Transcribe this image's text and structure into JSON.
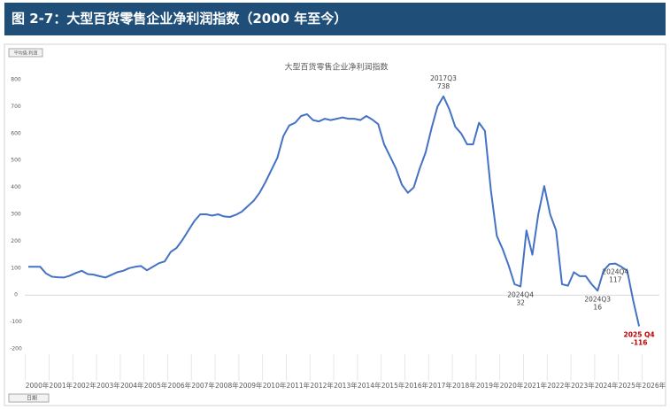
{
  "header": {
    "title": "图 2-7：大型百货零售企业净利润指数（2000 年至今）"
  },
  "chart_data": {
    "type": "line",
    "title": "大型百货零售企业净利润指数",
    "filter_button": "平均值:利润",
    "bottom_control": "日期",
    "x_group_labels": [
      "2000年",
      "2001年",
      "2002年",
      "2003年",
      "2004年",
      "2005年",
      "2006年",
      "2007年",
      "2008年",
      "2009年",
      "2010年",
      "2011年",
      "2012年",
      "2013年",
      "2014年",
      "2015年",
      "2016年",
      "2017年",
      "2018年",
      "2019年",
      "2020年",
      "2021年",
      "2022年",
      "2023年",
      "2024年",
      "2025年",
      "2026年"
    ],
    "values": [
      105,
      105,
      105,
      80,
      68,
      66,
      65,
      72,
      82,
      90,
      78,
      76,
      70,
      65,
      75,
      85,
      90,
      100,
      105,
      108,
      92,
      105,
      118,
      125,
      160,
      175,
      205,
      240,
      275,
      300,
      300,
      295,
      300,
      292,
      290,
      298,
      310,
      330,
      350,
      380,
      420,
      465,
      510,
      590,
      630,
      640,
      665,
      672,
      650,
      645,
      655,
      650,
      655,
      660,
      655,
      655,
      650,
      665,
      652,
      635,
      560,
      515,
      470,
      410,
      380,
      400,
      470,
      530,
      620,
      700,
      738,
      690,
      625,
      600,
      560,
      560,
      640,
      610,
      390,
      220,
      170,
      110,
      40,
      32,
      240,
      150,
      300,
      405,
      300,
      240,
      40,
      35,
      85,
      70,
      70,
      40,
      16,
      90,
      115,
      117,
      105,
      90,
      -20,
      -116
    ],
    "point_labels": [
      null,
      null,
      null,
      null,
      null,
      null,
      null,
      null,
      null,
      null,
      null,
      null,
      null,
      null,
      null,
      null,
      null,
      null,
      null,
      null,
      null,
      null,
      null,
      null,
      null,
      null,
      null,
      null,
      null,
      null,
      null,
      null,
      null,
      null,
      null,
      null,
      null,
      null,
      null,
      null,
      null,
      null,
      null,
      null,
      null,
      null,
      null,
      null,
      null,
      null,
      null,
      null,
      null,
      null,
      null,
      null,
      null,
      null,
      null,
      null,
      null,
      null,
      null,
      null,
      null,
      null,
      null,
      null,
      null,
      null,
      "2017Q3",
      null,
      null,
      null,
      null,
      null,
      null,
      null,
      null,
      null,
      null,
      null,
      null,
      "2024Q4",
      null,
      null,
      null,
      null,
      null,
      null,
      null,
      null,
      null,
      null,
      null,
      null,
      "2024Q3",
      null,
      null,
      "2024Q4",
      null,
      null,
      null,
      "2025 Q4"
    ],
    "point_label_colors": {
      "default": "#404040",
      "last": "#c00000"
    },
    "color": "#4472c4",
    "ylim": [
      -200,
      800
    ],
    "yticks": [
      -200,
      -100,
      0,
      100,
      200,
      300,
      400,
      500,
      600,
      700,
      800
    ],
    "grid": false
  }
}
